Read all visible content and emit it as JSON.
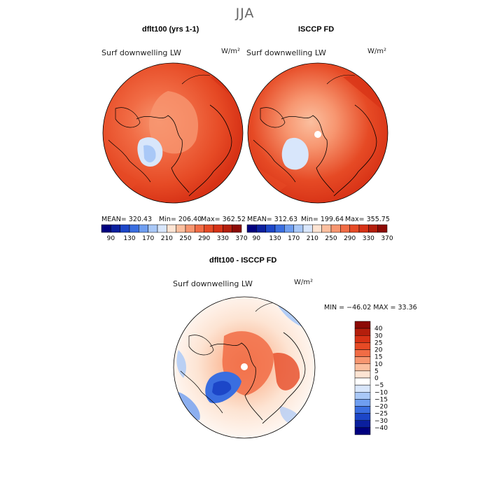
{
  "season": "JJA",
  "panels": {
    "model": {
      "title": "dflt100 (yrs 1-1)",
      "subtitle": "Surf downwelling LW",
      "units": "W/m²",
      "mean": "MEAN= 320.43",
      "min": "Min= 206.40",
      "max": "Max= 362.52"
    },
    "obs": {
      "title": "ISCCP FD",
      "subtitle": "Surf downwelling LW",
      "units": "W/m²",
      "mean": "MEAN= 312.63",
      "min": "Min= 199.64",
      "max": "Max= 355.75"
    },
    "diff": {
      "title": "dflt100 - ISCCP FD",
      "subtitle": "Surf downwelling LW",
      "units": "W/m²",
      "minmax": "MIN = −46.02 MAX =  33.36"
    }
  },
  "chart_data": [
    {
      "type": "heatmap",
      "projection": "north polar stereographic",
      "title": "dflt100 (yrs 1-1)",
      "variable": "Surf downwelling LW",
      "units": "W/m2",
      "stats": {
        "mean": 320.43,
        "min": 206.4,
        "max": 362.52
      },
      "contour_levels": [
        90,
        110,
        130,
        150,
        170,
        190,
        210,
        230,
        250,
        270,
        290,
        310,
        330,
        350,
        370
      ],
      "colorbar_tick_labels": [
        "90",
        "130",
        "170",
        "210",
        "250",
        "290",
        "330",
        "370"
      ]
    },
    {
      "type": "heatmap",
      "projection": "north polar stereographic",
      "title": "ISCCP FD",
      "variable": "Surf downwelling LW",
      "units": "W/m2",
      "stats": {
        "mean": 312.63,
        "min": 199.64,
        "max": 355.75
      },
      "contour_levels": [
        90,
        110,
        130,
        150,
        170,
        190,
        210,
        230,
        250,
        270,
        290,
        310,
        330,
        350,
        370
      ],
      "colorbar_tick_labels": [
        "90",
        "130",
        "170",
        "210",
        "250",
        "290",
        "330",
        "370"
      ]
    },
    {
      "type": "heatmap",
      "projection": "north polar stereographic",
      "title": "dflt100 - ISCCP FD",
      "variable": "Surf downwelling LW",
      "units": "W/m2",
      "stats": {
        "min": -46.02,
        "max": 33.36
      },
      "contour_levels": [
        -40,
        -30,
        -25,
        -20,
        -15,
        -10,
        -5,
        0,
        5,
        10,
        15,
        20,
        25,
        30,
        40
      ],
      "colorbar_tick_labels": [
        "40",
        "30",
        "25",
        "20",
        "15",
        "10",
        "5",
        "0",
        "−5",
        "−10",
        "−15",
        "−20",
        "−25",
        "−30",
        "−40"
      ]
    }
  ],
  "colors": {
    "abs_scale": [
      "#00007f",
      "#0a1f9e",
      "#1c46c8",
      "#3a6ee0",
      "#6f9ef0",
      "#a9c8f7",
      "#d8e6fb",
      "#fde4d3",
      "#fbbf9f",
      "#f79670",
      "#f16c45",
      "#e64a25",
      "#d73216",
      "#b41e0c",
      "#8c0a05"
    ],
    "diff_scale": [
      "#8c0a05",
      "#b41e0c",
      "#d73216",
      "#e64a25",
      "#f16c45",
      "#f79670",
      "#fbbf9f",
      "#fde4d3",
      "#ffffff",
      "#d8e6fb",
      "#a9c8f7",
      "#6f9ef0",
      "#3a6ee0",
      "#1c46c8",
      "#0a1f9e",
      "#00007f"
    ]
  }
}
